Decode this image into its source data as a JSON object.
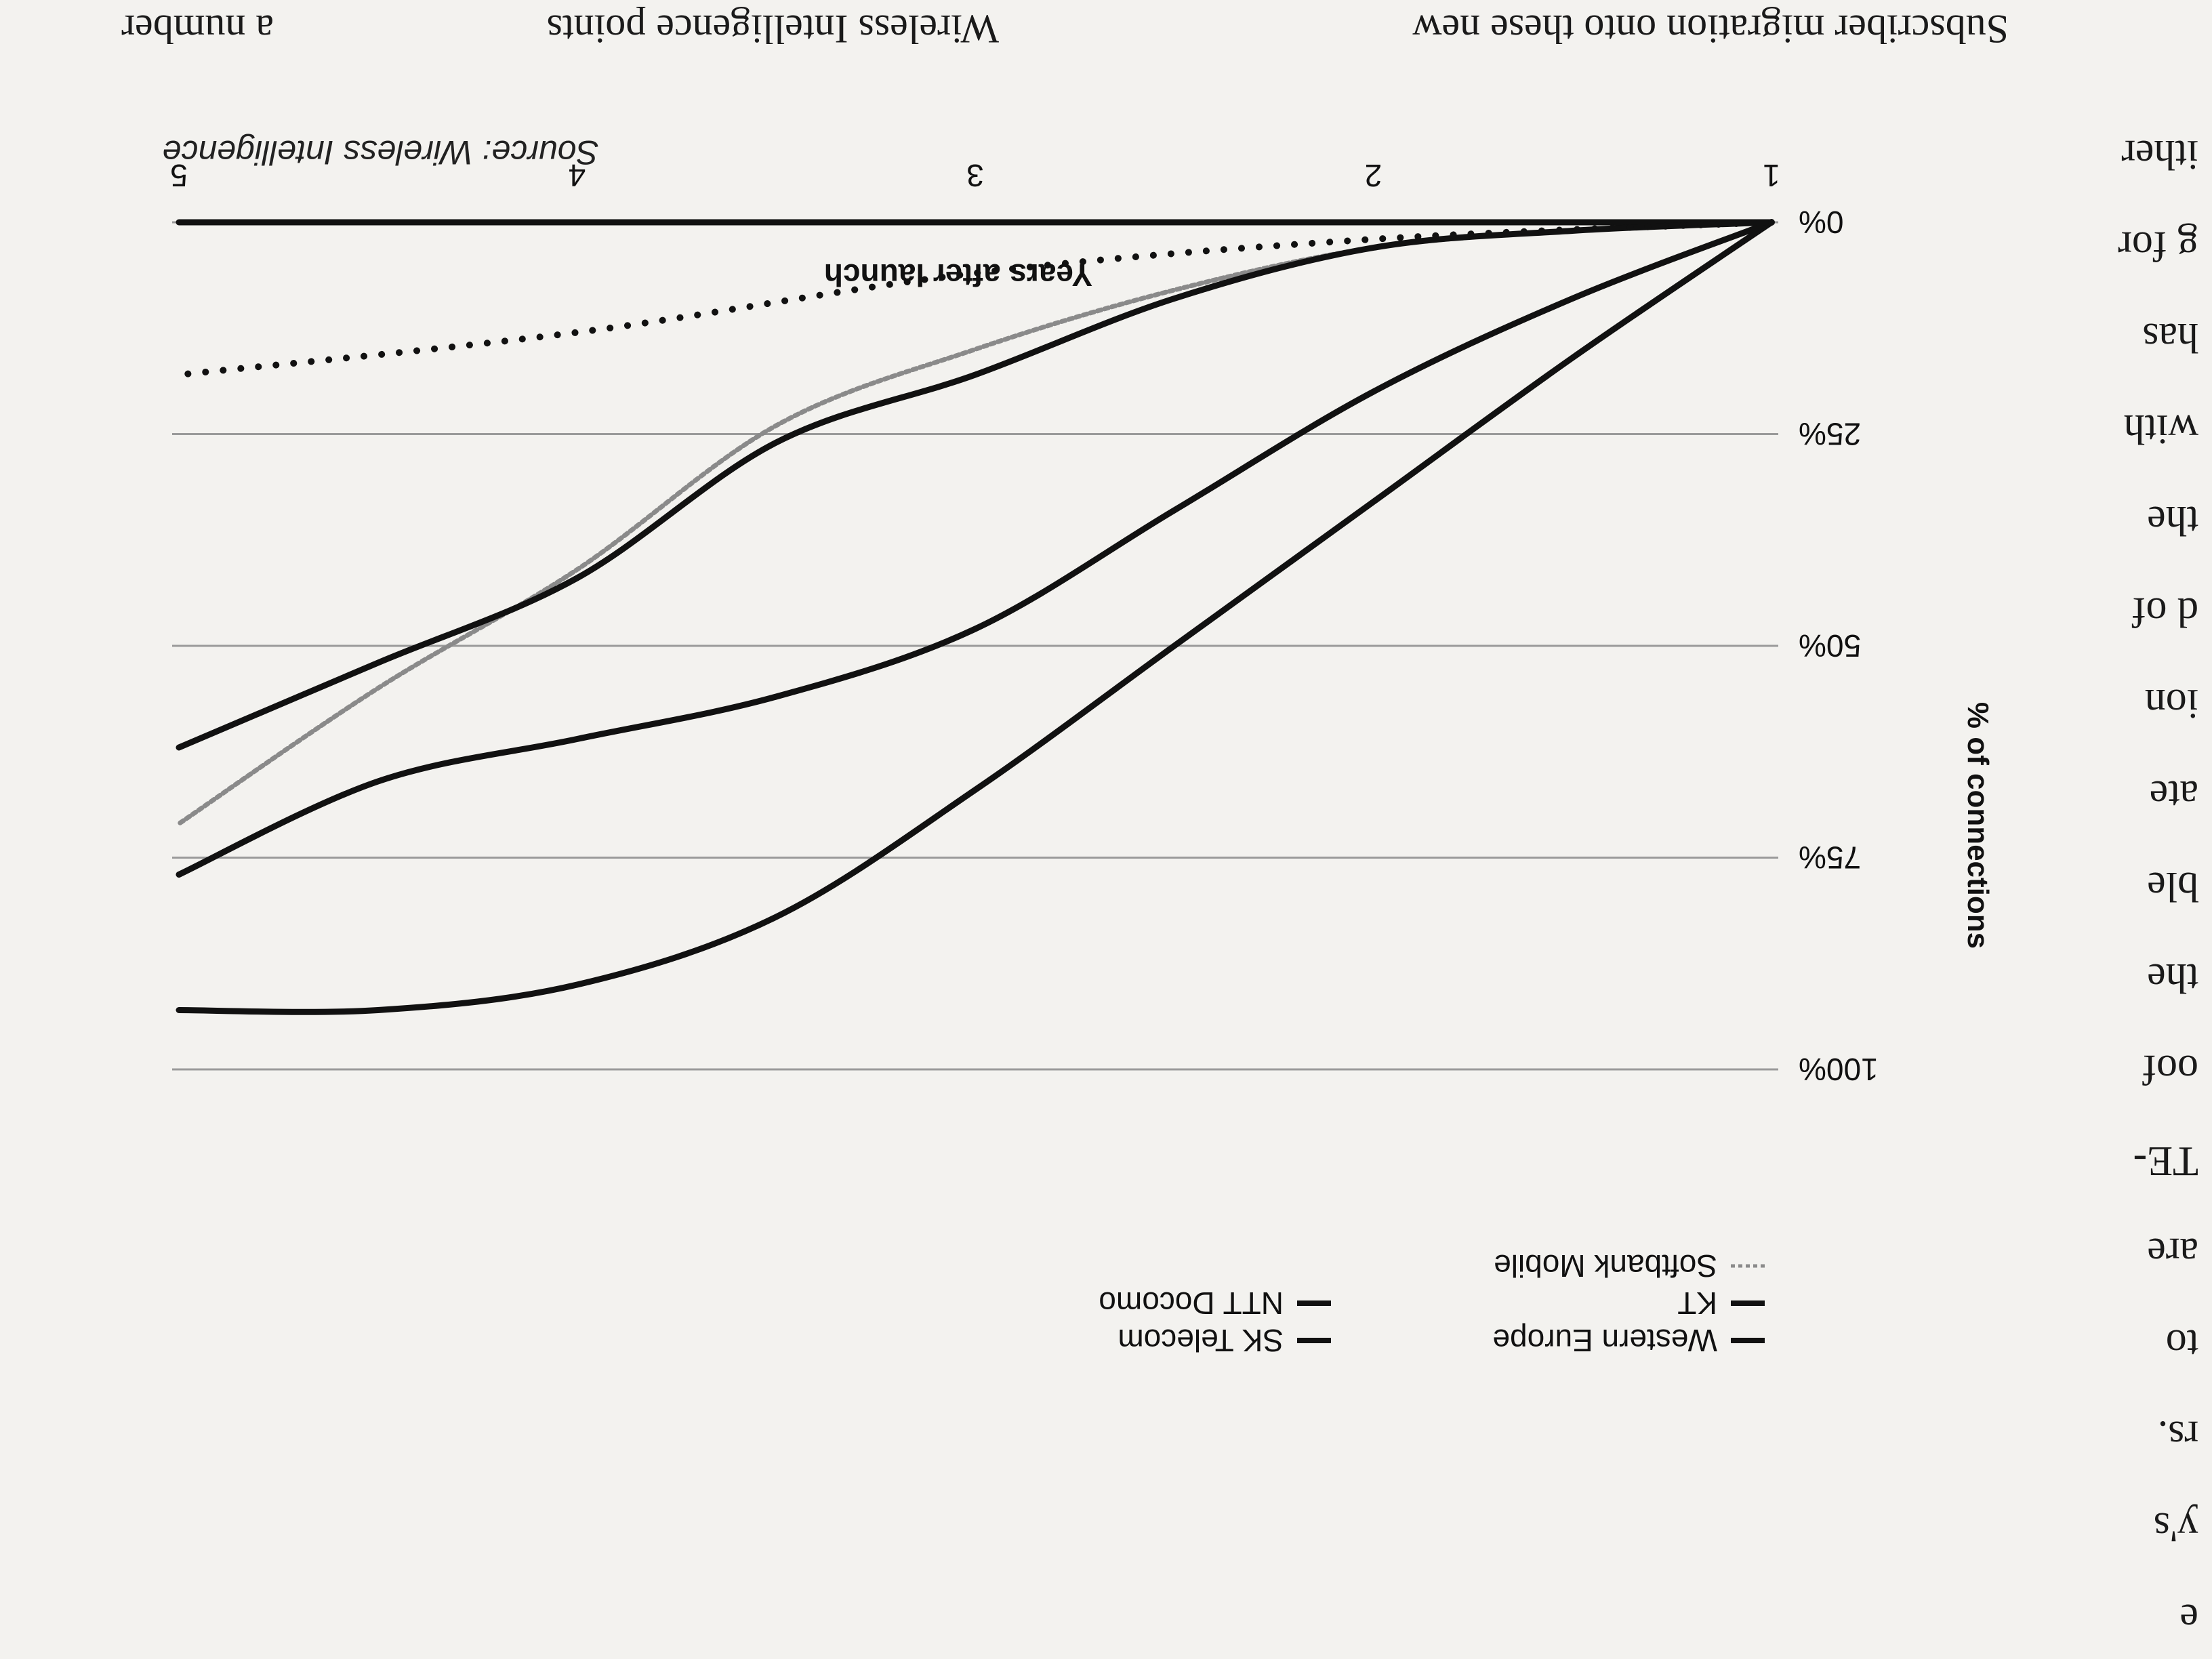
{
  "page": {
    "left_column_fragments": [
      "e",
      "y's",
      "rs.",
      "to",
      "are",
      "TE-",
      "oof",
      "the",
      "ble",
      "ate",
      "ion",
      "d of",
      "the",
      "with",
      "has",
      "g for",
      "ither"
    ],
    "bottom_text": [
      "Subscriber migration onto these new",
      "Wireless Intelligence points",
      "a number"
    ],
    "source": "Source: Wireless Intelligence"
  },
  "chart_data": {
    "type": "line",
    "ylabel": "% of connections",
    "xlabel": "Years after launch",
    "x_ticks": [
      "1",
      "2",
      "3",
      "4",
      "5"
    ],
    "y_ticks": [
      "0%",
      "25%",
      "50%",
      "75%",
      "100%"
    ],
    "xlim": [
      1,
      5
    ],
    "ylim": [
      0,
      100
    ],
    "grid": "horizontal",
    "legend_position": "bottom",
    "series": [
      {
        "name": "Western Europe",
        "style": "solid",
        "color": "#111111",
        "x": [
          1,
          1.5,
          2,
          2.5,
          3,
          3.5,
          4,
          4.5,
          5
        ],
        "y": [
          0,
          0,
          0,
          0,
          0,
          0,
          0,
          0,
          0
        ]
      },
      {
        "name": "KT",
        "style": "solid",
        "color": "#111111",
        "x": [
          1,
          1.5,
          2,
          2.5,
          3,
          3.5,
          4,
          4.5,
          5
        ],
        "y": [
          0,
          16,
          33,
          50,
          67,
          82,
          90,
          93,
          93
        ]
      },
      {
        "name": "Softbank Mobile",
        "style": "dashed",
        "color": "#8a8a8a",
        "x": [
          1,
          1.5,
          2,
          2.5,
          3,
          3.5,
          4,
          4.5,
          5
        ],
        "y": [
          0,
          1,
          3,
          8,
          15,
          24,
          41,
          55,
          71
        ]
      },
      {
        "name": "SK Telecom",
        "style": "solid",
        "color": "#111111",
        "x": [
          1,
          1.5,
          2,
          2.5,
          3,
          3.5,
          4,
          4.5,
          5
        ],
        "y": [
          0,
          9,
          20,
          34,
          48,
          56,
          61,
          66,
          77
        ]
      },
      {
        "name": "NTT Docomo",
        "style": "solid",
        "color": "#111111",
        "x": [
          1,
          1.5,
          2,
          2.5,
          3,
          3.5,
          4,
          4.5,
          5
        ],
        "y": [
          0,
          1,
          3,
          9,
          18,
          26,
          42,
          52,
          62
        ]
      },
      {
        "name": "",
        "style": "dotted",
        "color": "#111111",
        "x": [
          1,
          2,
          3,
          4,
          5
        ],
        "y": [
          0,
          2,
          6,
          13,
          18
        ]
      }
    ]
  }
}
